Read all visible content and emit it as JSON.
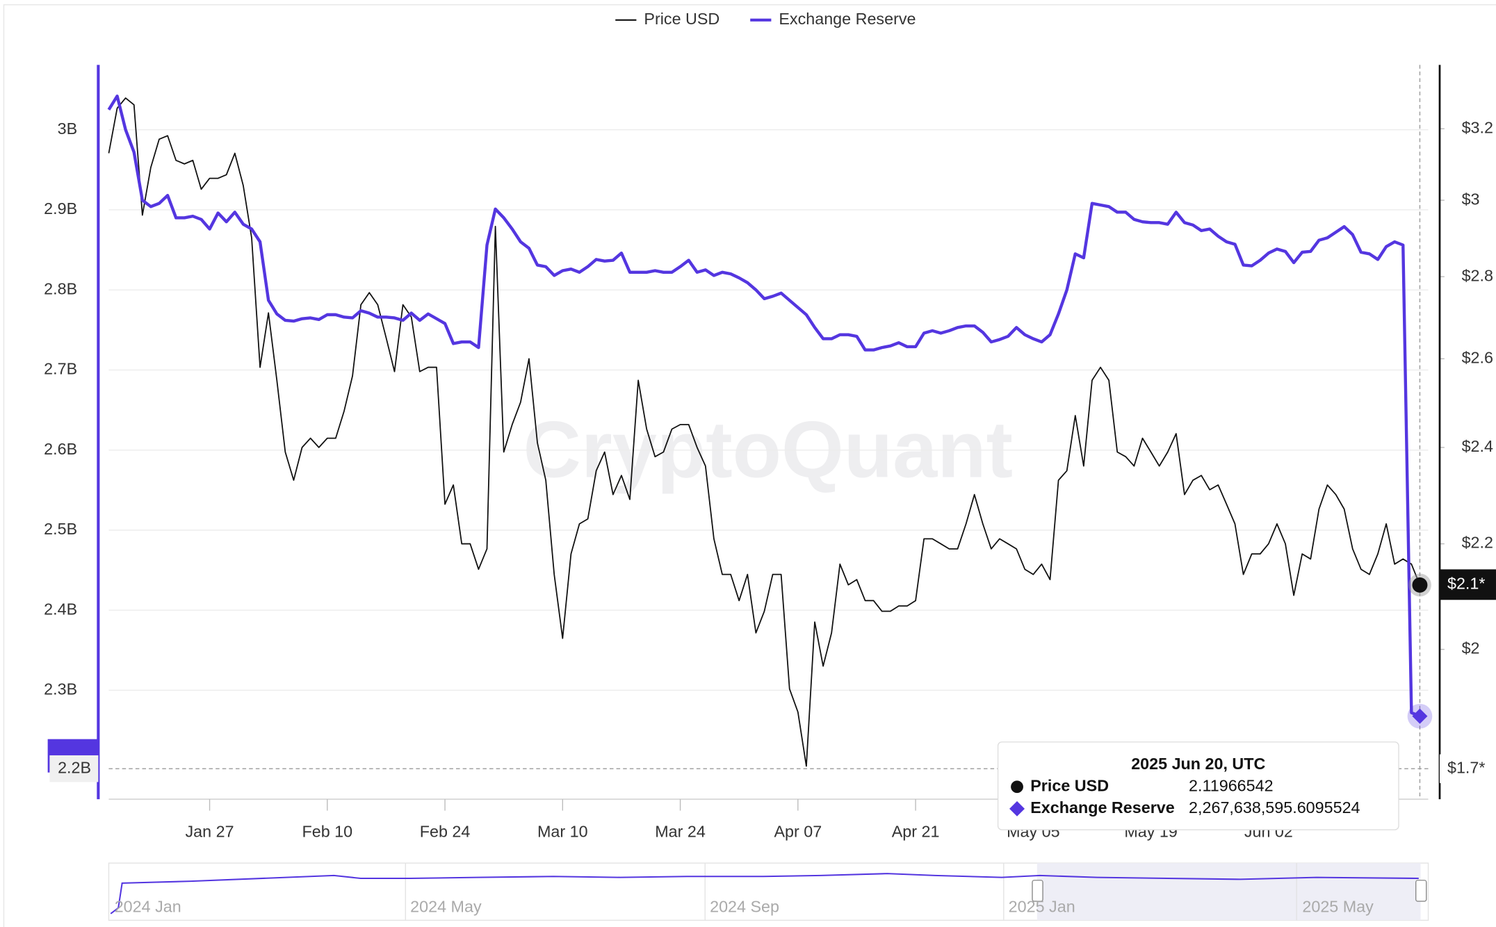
{
  "chart_data": {
    "type": "line",
    "watermark": "CryptoQuant",
    "x": [
      "2025-01-15",
      "2025-01-16",
      "2025-01-17",
      "2025-01-18",
      "2025-01-19",
      "2025-01-20",
      "2025-01-21",
      "2025-01-22",
      "2025-01-23",
      "2025-01-24",
      "2025-01-25",
      "2025-01-26",
      "2025-01-27",
      "2025-01-28",
      "2025-01-29",
      "2025-01-30",
      "2025-01-31",
      "2025-02-01",
      "2025-02-02",
      "2025-02-03",
      "2025-02-04",
      "2025-02-05",
      "2025-02-06",
      "2025-02-07",
      "2025-02-08",
      "2025-02-09",
      "2025-02-10",
      "2025-02-11",
      "2025-02-12",
      "2025-02-13",
      "2025-02-14",
      "2025-02-15",
      "2025-02-16",
      "2025-02-17",
      "2025-02-18",
      "2025-02-19",
      "2025-02-20",
      "2025-02-21",
      "2025-02-22",
      "2025-02-23",
      "2025-02-24",
      "2025-02-25",
      "2025-02-26",
      "2025-02-27",
      "2025-02-28",
      "2025-03-01",
      "2025-03-02",
      "2025-03-03",
      "2025-03-04",
      "2025-03-05",
      "2025-03-06",
      "2025-03-07",
      "2025-03-08",
      "2025-03-09",
      "2025-03-10",
      "2025-03-11",
      "2025-03-12",
      "2025-03-13",
      "2025-03-14",
      "2025-03-15",
      "2025-03-16",
      "2025-03-17",
      "2025-03-18",
      "2025-03-19",
      "2025-03-20",
      "2025-03-21",
      "2025-03-22",
      "2025-03-23",
      "2025-03-24",
      "2025-03-25",
      "2025-03-26",
      "2025-03-27",
      "2025-03-28",
      "2025-03-29",
      "2025-03-30",
      "2025-03-31",
      "2025-04-01",
      "2025-04-02",
      "2025-04-03",
      "2025-04-04",
      "2025-04-05",
      "2025-04-06",
      "2025-04-07",
      "2025-04-08",
      "2025-04-09",
      "2025-04-10",
      "2025-04-11",
      "2025-04-12",
      "2025-04-13",
      "2025-04-14",
      "2025-04-15",
      "2025-04-16",
      "2025-04-17",
      "2025-04-18",
      "2025-04-19",
      "2025-04-20",
      "2025-04-21",
      "2025-04-22",
      "2025-04-23",
      "2025-04-24",
      "2025-04-25",
      "2025-04-26",
      "2025-04-27",
      "2025-04-28",
      "2025-04-29",
      "2025-04-30",
      "2025-05-01",
      "2025-05-02",
      "2025-05-03",
      "2025-05-04",
      "2025-05-05",
      "2025-05-06",
      "2025-05-07",
      "2025-05-08",
      "2025-05-09",
      "2025-05-10",
      "2025-05-11",
      "2025-05-12",
      "2025-05-13",
      "2025-05-14",
      "2025-05-15",
      "2025-05-16",
      "2025-05-17",
      "2025-05-18",
      "2025-05-19",
      "2025-05-20",
      "2025-05-21",
      "2025-05-22",
      "2025-05-23",
      "2025-05-24",
      "2025-05-25",
      "2025-05-26",
      "2025-05-27",
      "2025-05-28",
      "2025-05-29",
      "2025-05-30",
      "2025-05-31",
      "2025-06-01",
      "2025-06-02",
      "2025-06-03",
      "2025-06-04",
      "2025-06-05",
      "2025-06-06",
      "2025-06-07",
      "2025-06-08",
      "2025-06-09",
      "2025-06-10",
      "2025-06-11",
      "2025-06-12",
      "2025-06-13",
      "2025-06-14",
      "2025-06-15",
      "2025-06-16",
      "2025-06-17",
      "2025-06-18",
      "2025-06-19",
      "2025-06-20"
    ],
    "series": [
      {
        "name": "Price USD",
        "color": "#111111",
        "axis": "y2",
        "values": [
          3.13,
          3.26,
          3.29,
          3.27,
          2.96,
          3.09,
          3.17,
          3.18,
          3.11,
          3.1,
          3.11,
          3.03,
          3.06,
          3.06,
          3.07,
          3.13,
          3.04,
          2.9,
          2.58,
          2.71,
          2.55,
          2.39,
          2.33,
          2.4,
          2.42,
          2.4,
          2.42,
          2.42,
          2.48,
          2.56,
          2.73,
          2.76,
          2.73,
          2.65,
          2.57,
          2.73,
          2.7,
          2.57,
          2.58,
          2.58,
          2.28,
          2.32,
          2.2,
          2.2,
          2.15,
          2.19,
          2.93,
          2.39,
          2.45,
          2.5,
          2.6,
          2.41,
          2.33,
          2.14,
          2.02,
          2.18,
          2.24,
          2.25,
          2.35,
          2.39,
          2.3,
          2.34,
          2.29,
          2.55,
          2.44,
          2.38,
          2.39,
          2.44,
          2.45,
          2.45,
          2.4,
          2.36,
          2.21,
          2.14,
          2.14,
          2.09,
          2.14,
          2.03,
          2.07,
          2.14,
          2.14,
          1.93,
          1.89,
          1.8,
          2.05,
          1.97,
          2.03,
          2.16,
          2.12,
          2.13,
          2.09,
          2.09,
          2.07,
          2.07,
          2.08,
          2.08,
          2.09,
          2.21,
          2.21,
          2.2,
          2.19,
          2.19,
          2.24,
          2.3,
          2.24,
          2.19,
          2.21,
          2.2,
          2.19,
          2.15,
          2.14,
          2.16,
          2.13,
          2.33,
          2.35,
          2.47,
          2.36,
          2.55,
          2.58,
          2.55,
          2.39,
          2.38,
          2.36,
          2.42,
          2.39,
          2.36,
          2.39,
          2.43,
          2.3,
          2.33,
          2.34,
          2.31,
          2.32,
          2.28,
          2.24,
          2.14,
          2.18,
          2.18,
          2.2,
          2.24,
          2.2,
          2.1,
          2.18,
          2.17,
          2.27,
          2.32,
          2.3,
          2.27,
          2.19,
          2.15,
          2.14,
          2.18,
          2.24,
          2.16,
          2.17,
          2.16,
          2.11966542
        ]
      },
      {
        "name": "Exchange Reserve",
        "color": "#5436e0",
        "axis": "y",
        "values": [
          3025000000,
          3042000000,
          3000000000,
          2972000000,
          2912000000,
          2904000000,
          2908000000,
          2918000000,
          2890000000,
          2890000000,
          2892000000,
          2888000000,
          2876000000,
          2896000000,
          2885000000,
          2897000000,
          2882000000,
          2876000000,
          2860000000,
          2787000000,
          2770000000,
          2762000000,
          2761000000,
          2764000000,
          2765000000,
          2763000000,
          2769000000,
          2769000000,
          2766000000,
          2765000000,
          2774000000,
          2771000000,
          2766000000,
          2766000000,
          2765000000,
          2762000000,
          2771000000,
          2762000000,
          2770000000,
          2764000000,
          2758000000,
          2733000000,
          2735000000,
          2735000000,
          2728000000,
          2856000000,
          2901000000,
          2890000000,
          2876000000,
          2860000000,
          2852000000,
          2831000000,
          2829000000,
          2818000000,
          2824000000,
          2826000000,
          2822000000,
          2829000000,
          2838000000,
          2836000000,
          2837000000,
          2846000000,
          2822000000,
          2822000000,
          2822000000,
          2824000000,
          2822000000,
          2822000000,
          2829000000,
          2837000000,
          2822000000,
          2825000000,
          2818000000,
          2822000000,
          2820000000,
          2815000000,
          2809000000,
          2800000000,
          2789000000,
          2792000000,
          2796000000,
          2787000000,
          2778000000,
          2769000000,
          2753000000,
          2739000000,
          2739000000,
          2744000000,
          2744000000,
          2742000000,
          2725000000,
          2725000000,
          2728000000,
          2730000000,
          2734000000,
          2729000000,
          2729000000,
          2746000000,
          2749000000,
          2746000000,
          2749000000,
          2753000000,
          2755000000,
          2755000000,
          2747000000,
          2735000000,
          2738000000,
          2742000000,
          2753000000,
          2744000000,
          2739000000,
          2735000000,
          2744000000,
          2770000000,
          2800000000,
          2845000000,
          2840000000,
          2908000000,
          2906000000,
          2904000000,
          2897000000,
          2897000000,
          2888000000,
          2885000000,
          2884000000,
          2884000000,
          2882000000,
          2897000000,
          2884000000,
          2881000000,
          2874000000,
          2876000000,
          2867000000,
          2860000000,
          2857000000,
          2831000000,
          2830000000,
          2837000000,
          2846000000,
          2851000000,
          2848000000,
          2834000000,
          2847000000,
          2848000000,
          2862000000,
          2865000000,
          2872000000,
          2879000000,
          2869000000,
          2847000000,
          2845000000,
          2838000000,
          2854000000,
          2860000000,
          2856000000,
          2272000000,
          2267638595.6095524
        ]
      }
    ],
    "xlim": [
      "2025-01-15",
      "2025-06-21"
    ],
    "xticks": [
      {
        "value": "2025-01-27",
        "label": "Jan 27"
      },
      {
        "value": "2025-02-10",
        "label": "Feb 10"
      },
      {
        "value": "2025-02-24",
        "label": "Feb 24"
      },
      {
        "value": "2025-03-10",
        "label": "Mar 10"
      },
      {
        "value": "2025-03-24",
        "label": "Mar 24"
      },
      {
        "value": "2025-04-07",
        "label": "Apr 07"
      },
      {
        "value": "2025-04-21",
        "label": "Apr 21"
      },
      {
        "value": "2025-05-05",
        "label": "May 05"
      },
      {
        "value": "2025-05-19",
        "label": "May 19"
      },
      {
        "value": "2025-06-02",
        "label": "Jun 02"
      }
    ],
    "ylim": [
      2164000000,
      3081000000
    ],
    "yticks": [
      {
        "value": 2300000000,
        "label": "2.3B"
      },
      {
        "value": 2400000000,
        "label": "2.4B"
      },
      {
        "value": 2500000000,
        "label": "2.5B"
      },
      {
        "value": 2600000000,
        "label": "2.6B"
      },
      {
        "value": 2700000000,
        "label": "2.7B"
      },
      {
        "value": 2800000000,
        "label": "2.8B"
      },
      {
        "value": 2900000000,
        "label": "2.9B"
      },
      {
        "value": 3000000000,
        "label": "3B"
      }
    ],
    "y2lim": [
      1.747,
      3.39
    ],
    "y2scale": "log",
    "y2ticks": [
      {
        "value": 2,
        "label": "$2"
      },
      {
        "value": 2.2,
        "label": "$2.2"
      },
      {
        "value": 2.4,
        "label": "$2.4"
      },
      {
        "value": 2.6,
        "label": "$2.6"
      },
      {
        "value": 2.8,
        "label": "$2.8"
      },
      {
        "value": 3,
        "label": "$3"
      },
      {
        "value": 3.2,
        "label": "$3.2"
      }
    ],
    "grid": true,
    "tooltip": {
      "title": "2025 Jun 20, UTC",
      "reserve_label": "2,267,638,595.6095524",
      "axis_labels": [
        "2.2B",
        "$2.1*",
        "$1.7*"
      ]
    },
    "navigator": {
      "labels": [
        "2024 Jan",
        "2024 May",
        "2024 Sep",
        "2025 Jan",
        "2025 May"
      ]
    }
  }
}
